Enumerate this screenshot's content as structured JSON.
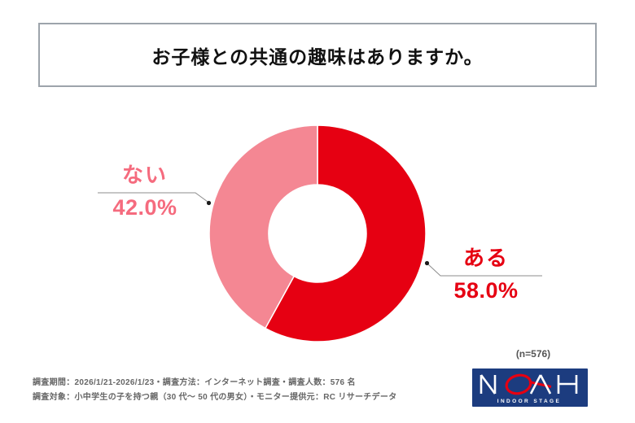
{
  "title": {
    "text": "お子様との共通の趣味はありますか。"
  },
  "chart_data": {
    "type": "pie",
    "variant": "donut",
    "title": "お子様との共通の趣味はありますか。",
    "categories": [
      "ある",
      "ない"
    ],
    "values": [
      58.0,
      42.0
    ],
    "unit": "%",
    "start_angle_deg": 0,
    "direction": "clockwise",
    "slice_colors": [
      "#e60012",
      "#f48793"
    ],
    "separator_color": "#ffffff",
    "labels": [
      {
        "name": "ある",
        "value_text": "58.0%",
        "text_color": "#e60012"
      },
      {
        "name": "ない",
        "value_text": "42.0%",
        "text_color": "#f56b7e"
      }
    ],
    "sample_size_label": "(n=576)",
    "legend_position": "none"
  },
  "footer": {
    "line1": "調査期間：2026/1/21-2026/1/23・調査方法：インターネット調査・調査人数：576 名",
    "line2": "調査対象：小中学生の子を持つ親（30 代～ 50 代の男女）・モニター提供元：RC リサーチデータ"
  },
  "logo": {
    "name": "NOAH",
    "subtext": "INDOOR STAGE",
    "bg_color": "#1c3c7f",
    "accent_color": "#e60012"
  }
}
